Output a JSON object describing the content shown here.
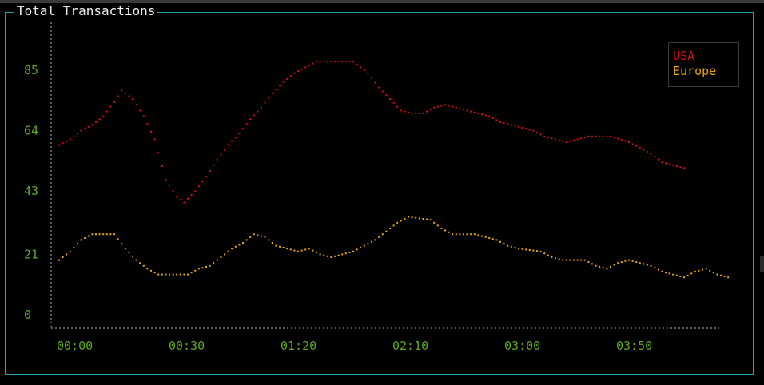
{
  "window": {
    "title": "Total Transactions"
  },
  "colors": {
    "frame": "#1fa6a6",
    "axis": "#5a5a5a",
    "tick_label": "#5fa81e",
    "usa": "#d40d0d",
    "europe": "#e6a514"
  },
  "chart_data": {
    "type": "line",
    "title": "Total Transactions",
    "xlabel": "",
    "ylabel": "",
    "ylim": [
      0,
      93
    ],
    "y_ticks": [
      0,
      21,
      43,
      64,
      85
    ],
    "x_ticks": [
      "00:00",
      "00:30",
      "01:20",
      "02:10",
      "03:00",
      "03:50"
    ],
    "grid": false,
    "legend": "top-right",
    "series": [
      {
        "name": "USA",
        "color": "#d40d0d",
        "points": [
          [
            0,
            59
          ],
          [
            3,
            61
          ],
          [
            6,
            64
          ],
          [
            9,
            66
          ],
          [
            12,
            69
          ],
          [
            15,
            74
          ],
          [
            17,
            78
          ],
          [
            20,
            75
          ],
          [
            23,
            69
          ],
          [
            26,
            61
          ],
          [
            29,
            47
          ],
          [
            32,
            41
          ],
          [
            34,
            39
          ],
          [
            37,
            43
          ],
          [
            40,
            48
          ],
          [
            43,
            54
          ],
          [
            46,
            59
          ],
          [
            49,
            63
          ],
          [
            52,
            68
          ],
          [
            55,
            72
          ],
          [
            58,
            77
          ],
          [
            61,
            81
          ],
          [
            64,
            84
          ],
          [
            67,
            86
          ],
          [
            70,
            88
          ],
          [
            80,
            88
          ],
          [
            84,
            84
          ],
          [
            87,
            79
          ],
          [
            90,
            75
          ],
          [
            93,
            71
          ],
          [
            96,
            70
          ],
          [
            99,
            70
          ],
          [
            102,
            72
          ],
          [
            105,
            73
          ],
          [
            108,
            72
          ],
          [
            111,
            71
          ],
          [
            114,
            70
          ],
          [
            117,
            69
          ],
          [
            120,
            67
          ],
          [
            123,
            66
          ],
          [
            126,
            65
          ],
          [
            129,
            64
          ],
          [
            132,
            62
          ],
          [
            135,
            61
          ],
          [
            138,
            60
          ],
          [
            141,
            61
          ],
          [
            144,
            62
          ],
          [
            150,
            62
          ],
          [
            155,
            60
          ],
          [
            158,
            58
          ],
          [
            161,
            56
          ],
          [
            164,
            53
          ],
          [
            167,
            52
          ],
          [
            170,
            51
          ]
        ]
      },
      {
        "name": "Europe",
        "color": "#e6a514",
        "points": [
          [
            0,
            19
          ],
          [
            3,
            22
          ],
          [
            6,
            26
          ],
          [
            9,
            28
          ],
          [
            15,
            28
          ],
          [
            18,
            23
          ],
          [
            21,
            19
          ],
          [
            24,
            16
          ],
          [
            27,
            14
          ],
          [
            30,
            14
          ],
          [
            35,
            14
          ],
          [
            38,
            16
          ],
          [
            41,
            17
          ],
          [
            44,
            20
          ],
          [
            47,
            23
          ],
          [
            50,
            25
          ],
          [
            53,
            28
          ],
          [
            56,
            27
          ],
          [
            59,
            24
          ],
          [
            62,
            23
          ],
          [
            65,
            22
          ],
          [
            68,
            23
          ],
          [
            71,
            21
          ],
          [
            74,
            20
          ],
          [
            77,
            21
          ],
          [
            80,
            22
          ],
          [
            83,
            24
          ],
          [
            86,
            26
          ],
          [
            89,
            29
          ],
          [
            92,
            32
          ],
          [
            95,
            34
          ],
          [
            101,
            33
          ],
          [
            104,
            30
          ],
          [
            107,
            28
          ],
          [
            113,
            28
          ],
          [
            116,
            27
          ],
          [
            119,
            26
          ],
          [
            122,
            24
          ],
          [
            125,
            23
          ],
          [
            131,
            22
          ],
          [
            134,
            20
          ],
          [
            137,
            19
          ],
          [
            143,
            19
          ],
          [
            146,
            17
          ],
          [
            149,
            16
          ],
          [
            152,
            18
          ],
          [
            155,
            19
          ],
          [
            158,
            18
          ],
          [
            161,
            17
          ],
          [
            164,
            15
          ],
          [
            167,
            14
          ],
          [
            170,
            13
          ],
          [
            173,
            15
          ],
          [
            176,
            16
          ],
          [
            179,
            14
          ],
          [
            182,
            13
          ]
        ]
      }
    ]
  }
}
